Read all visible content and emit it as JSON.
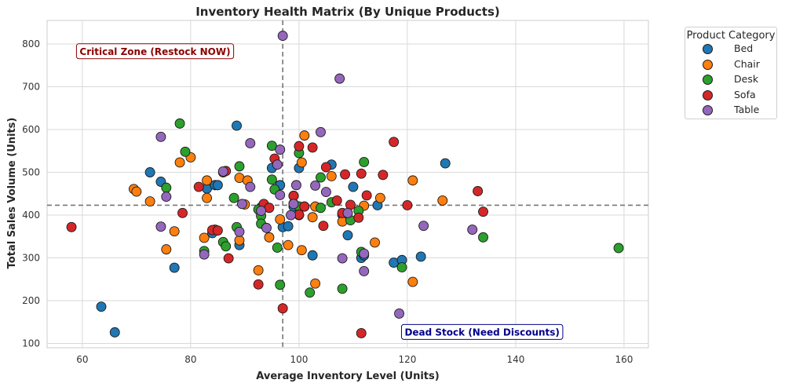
{
  "chart_data": {
    "type": "scatter",
    "title": "Inventory Health Matrix (By Unique Products)",
    "xlabel": "Average Inventory Level (Units)",
    "ylabel": "Total Sales Volume (Units)",
    "xlim": [
      53.5,
      164.5
    ],
    "ylim": [
      90,
      855
    ],
    "xticks": [
      60,
      80,
      100,
      120,
      140,
      160
    ],
    "yticks": [
      100,
      200,
      300,
      400,
      500,
      600,
      700,
      800
    ],
    "grid": true,
    "reference_lines": {
      "x": 97,
      "y": 423
    },
    "annotations": [
      {
        "text": "Critical Zone (Restock NOW)",
        "x": 59.5,
        "y": 782,
        "color": "#8b0000"
      },
      {
        "text": "Dead Stock (Need Discounts)",
        "x": 119.5,
        "y": 126,
        "color": "#00008b"
      }
    ],
    "legend": {
      "title": "Product Category",
      "placement": "outside-right"
    },
    "series": [
      {
        "name": "Bed",
        "color": "#1f77b4",
        "points": [
          [
            63.5,
            186
          ],
          [
            66,
            126
          ],
          [
            72.5,
            500
          ],
          [
            74.5,
            478
          ],
          [
            77,
            277
          ],
          [
            83,
            462
          ],
          [
            84.5,
            470
          ],
          [
            85,
            470
          ],
          [
            84,
            358
          ],
          [
            89,
            330
          ],
          [
            88.5,
            609
          ],
          [
            93,
            418
          ],
          [
            95,
            510
          ],
          [
            96.5,
            470
          ],
          [
            97,
            372
          ],
          [
            98,
            374
          ],
          [
            99,
            420
          ],
          [
            100,
            510
          ],
          [
            102.5,
            306
          ],
          [
            108,
            401
          ],
          [
            109,
            353
          ],
          [
            110,
            466
          ],
          [
            111.5,
            300
          ],
          [
            112,
            306
          ],
          [
            114.5,
            423
          ],
          [
            117.5,
            289
          ],
          [
            119,
            295
          ],
          [
            122.5,
            303
          ],
          [
            127,
            521
          ],
          [
            106,
            518
          ]
        ]
      },
      {
        "name": "Chair",
        "color": "#ff7f0e",
        "points": [
          [
            69.5,
            461
          ],
          [
            70,
            455
          ],
          [
            72.5,
            432
          ],
          [
            75.5,
            320
          ],
          [
            77,
            362
          ],
          [
            78,
            523
          ],
          [
            80,
            535
          ],
          [
            82.5,
            347
          ],
          [
            83,
            481
          ],
          [
            83,
            440
          ],
          [
            86,
            500
          ],
          [
            89,
            341
          ],
          [
            89,
            487
          ],
          [
            90,
            425
          ],
          [
            90.5,
            481
          ],
          [
            92.5,
            271
          ],
          [
            94.5,
            348
          ],
          [
            96.5,
            390
          ],
          [
            98,
            330
          ],
          [
            100,
            400
          ],
          [
            100.5,
            318
          ],
          [
            101,
            586
          ],
          [
            100.5,
            523
          ],
          [
            102.5,
            395
          ],
          [
            103,
            240
          ],
          [
            103,
            420
          ],
          [
            106,
            491
          ],
          [
            108,
            385
          ],
          [
            112,
            422
          ],
          [
            114,
            336
          ],
          [
            115,
            440
          ],
          [
            121,
            244
          ],
          [
            121,
            481
          ],
          [
            126.5,
            434
          ]
        ]
      },
      {
        "name": "Desk",
        "color": "#2ca02c",
        "points": [
          [
            75.5,
            464
          ],
          [
            78,
            614
          ],
          [
            79,
            548
          ],
          [
            82.5,
            316
          ],
          [
            84.5,
            366
          ],
          [
            86,
            337
          ],
          [
            86.5,
            327
          ],
          [
            88,
            440
          ],
          [
            88.5,
            372
          ],
          [
            89,
            514
          ],
          [
            92.5,
            413
          ],
          [
            93,
            398
          ],
          [
            93,
            380
          ],
          [
            95,
            483
          ],
          [
            95,
            562
          ],
          [
            95.5,
            460
          ],
          [
            96,
            324
          ],
          [
            96.5,
            237
          ],
          [
            99,
            445
          ],
          [
            99,
            427
          ],
          [
            100,
            545
          ],
          [
            100,
            420
          ],
          [
            101,
            420
          ],
          [
            102,
            219
          ],
          [
            104,
            417
          ],
          [
            104,
            488
          ],
          [
            106,
            430
          ],
          [
            108,
            228
          ],
          [
            109.5,
            388
          ],
          [
            111,
            410
          ],
          [
            111.5,
            314
          ],
          [
            112,
            524
          ],
          [
            119,
            278
          ],
          [
            134,
            348
          ],
          [
            159,
            323
          ]
        ]
      },
      {
        "name": "Sofa",
        "color": "#d62728",
        "points": [
          [
            58,
            372
          ],
          [
            78.5,
            405
          ],
          [
            81.5,
            466
          ],
          [
            84,
            365
          ],
          [
            85,
            364
          ],
          [
            86.5,
            503
          ],
          [
            87,
            299
          ],
          [
            92.5,
            238
          ],
          [
            93.5,
            426
          ],
          [
            94.5,
            417
          ],
          [
            95.5,
            532
          ],
          [
            97,
            182
          ],
          [
            99,
            445
          ],
          [
            100,
            561
          ],
          [
            100,
            401
          ],
          [
            101,
            420
          ],
          [
            102.5,
            558
          ],
          [
            104.5,
            375
          ],
          [
            105,
            512
          ],
          [
            107,
            434
          ],
          [
            108,
            405
          ],
          [
            108.5,
            495
          ],
          [
            109.5,
            424
          ],
          [
            111,
            394
          ],
          [
            111.5,
            497
          ],
          [
            112.5,
            446
          ],
          [
            111.5,
            124
          ],
          [
            115.5,
            494
          ],
          [
            117.5,
            571
          ],
          [
            120,
            423
          ],
          [
            133,
            456
          ],
          [
            134,
            408
          ]
        ]
      },
      {
        "name": "Table",
        "color": "#9467bd",
        "points": [
          [
            74.5,
            583
          ],
          [
            74.5,
            373
          ],
          [
            75.5,
            443
          ],
          [
            82.5,
            308
          ],
          [
            86,
            502
          ],
          [
            89,
            361
          ],
          [
            89.5,
            426
          ],
          [
            91,
            568
          ],
          [
            91,
            466
          ],
          [
            93,
            410
          ],
          [
            94,
            370
          ],
          [
            96,
            518
          ],
          [
            96.5,
            553
          ],
          [
            96.5,
            447
          ],
          [
            97,
            819
          ],
          [
            98.5,
            400
          ],
          [
            99,
            426
          ],
          [
            99.5,
            470
          ],
          [
            103,
            469
          ],
          [
            104,
            594
          ],
          [
            105,
            454
          ],
          [
            107.5,
            719
          ],
          [
            108,
            299
          ],
          [
            109,
            405
          ],
          [
            112,
            310
          ],
          [
            112,
            269
          ],
          [
            118.5,
            170
          ],
          [
            123,
            375
          ],
          [
            132,
            366
          ]
        ]
      }
    ]
  },
  "legend_title": "Product Category"
}
